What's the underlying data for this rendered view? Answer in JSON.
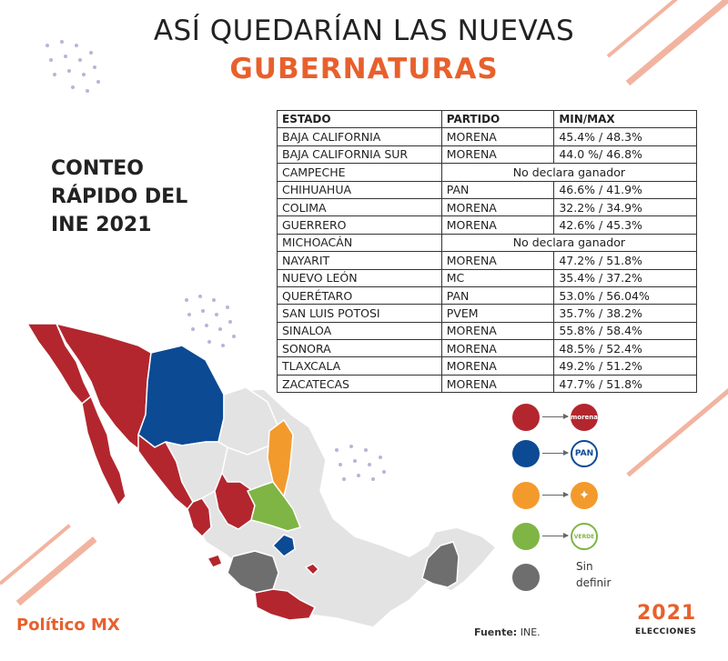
{
  "header": {
    "title_line1": "ASÍ QUEDARÍAN LAS NUEVAS",
    "title_line2": "GUBERNATURAS"
  },
  "side_text": [
    "CONTEO",
    "RÁPIDO DEL",
    "INE 2021"
  ],
  "table": {
    "columns": [
      "ESTADO",
      "PARTIDO",
      "MIN/MAX"
    ],
    "rows": [
      {
        "estado": "BAJA CALIFORNIA",
        "partido": "MORENA",
        "minmax": "45.4% / 48.3%"
      },
      {
        "estado": "BAJA CALIFORNIA SUR",
        "partido": "MORENA",
        "minmax": "44.0 %/ 46.8%"
      },
      {
        "estado": "CAMPECHE",
        "note": "No declara ganador"
      },
      {
        "estado": "CHIHUAHUA",
        "partido": "PAN",
        "minmax": "46.6% / 41.9%"
      },
      {
        "estado": "COLIMA",
        "partido": "MORENA",
        "minmax": "32.2% / 34.9%"
      },
      {
        "estado": "GUERRERO",
        "partido": "MORENA",
        "minmax": "42.6% / 45.3%"
      },
      {
        "estado": "MICHOACÁN",
        "note": "No declara ganador"
      },
      {
        "estado": "NAYARIT",
        "partido": "MORENA",
        "minmax": "47.2% / 51.8%"
      },
      {
        "estado": "NUEVO LEÓN",
        "partido": "MC",
        "minmax": "35.4% / 37.2%"
      },
      {
        "estado": "QUERÉTARO",
        "partido": "PAN",
        "minmax": "53.0% / 56.04%"
      },
      {
        "estado": "SAN LUIS POTOSI",
        "partido": "PVEM",
        "minmax": "35.7% / 38.2%"
      },
      {
        "estado": "SINALOA",
        "partido": "MORENA",
        "minmax": "55.8% /  58.4%"
      },
      {
        "estado": "SONORA",
        "partido": "MORENA",
        "minmax": "48.5% / 52.4%"
      },
      {
        "estado": "TLAXCALA",
        "partido": "MORENA",
        "minmax": "49.2% / 51.2%"
      },
      {
        "estado": "ZACATECAS",
        "partido": "MORENA",
        "minmax": "47.7% / 51.8%"
      }
    ]
  },
  "legend": {
    "morena": {
      "color": "#b3262e",
      "logo_text": "morena"
    },
    "pan": {
      "color": "#0d4a94",
      "logo_text": "PAN"
    },
    "mc": {
      "color": "#f39a2c",
      "icon": "movimiento-ciudadano-eagle-icon"
    },
    "pvem": {
      "color": "#7fb544",
      "logo_text": "VERDE"
    },
    "sin_definir": {
      "color": "#6e6e6e",
      "label_line1": "Sin",
      "label_line2": "definir"
    }
  },
  "map_colors": {
    "base": "#e3e3e3",
    "border": "#ffffff"
  },
  "footer": {
    "brand_part1": "Político",
    "brand_part2": "MX",
    "source_label": "Fuente:",
    "source_value": "INE.",
    "year": "2021",
    "elections_label": "ELECCIONES"
  }
}
